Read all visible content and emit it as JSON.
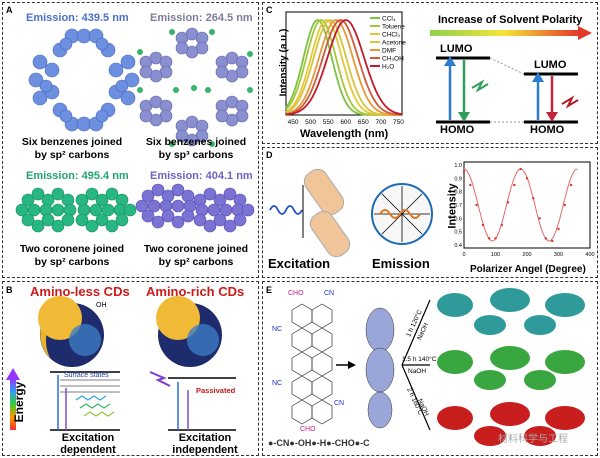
{
  "panelA": {
    "label": "A",
    "emissions": [
      "Emission: 439.5 nm",
      "Emission: 264.5 nm",
      "Emission: 495.4 nm",
      "Emission: 404.1 nm"
    ],
    "captions": [
      [
        "Six benzenes joined",
        "by sp² carbons"
      ],
      [
        "Six benzenes joined",
        "by sp³ carbons"
      ],
      [
        "Two coronene joined",
        "by sp² carbons"
      ],
      [
        "Two coronene joined",
        "by sp² carbons"
      ]
    ],
    "colors": {
      "blue": "#6d8fe0",
      "green": "#28b783",
      "purple": "#7b73d4"
    }
  },
  "panelB": {
    "label": "B",
    "titles": [
      "Amino-less CDs",
      "Amino-rich CDs"
    ],
    "energy_label": "Energy",
    "surface_states": "Surface states",
    "passivated": "Passivated",
    "captions": [
      [
        "Excitation",
        "dependent"
      ],
      [
        "Excitation",
        "independent"
      ]
    ],
    "oh_label": "OH"
  },
  "panelC": {
    "label": "C",
    "legend": [
      "CCl₄",
      "Toluene",
      "CHCl₃",
      "Acetone",
      "DMF",
      "CH₃OH",
      "H₂O"
    ],
    "ylabel": "Intensity (a.u.)",
    "xlabel": "Wavelength (nm)",
    "xticks": [
      "450",
      "500",
      "550",
      "600",
      "650",
      "700",
      "750"
    ],
    "arrow_text": "Increase of Solvent Polarity",
    "lumo": "LUMO",
    "homo": "HOMO"
  },
  "panelD": {
    "label": "D",
    "excitation": "Excitation",
    "emission": "Emission",
    "ylabel": "Intensity",
    "xlabel": "Polarizer Angel (Degree)",
    "yticks": [
      "1.0",
      "0.9",
      "0.8",
      "0.7",
      "0.6",
      "0.5",
      "0.4"
    ],
    "xticks": [
      "0",
      "100",
      "200",
      "300",
      "400"
    ]
  },
  "panelE": {
    "label": "E",
    "conditions": [
      "1 h 120°C",
      "NaOH",
      "1.5 h 140°C",
      "NaOH",
      "2 h 160°C",
      "NaOH"
    ],
    "legend": "●-CN●-OH●-H●-CHO●-C",
    "watermark": "材料科学与工程",
    "groups": [
      "CHO",
      "CN",
      "NC",
      "NC",
      "CN",
      "CHO"
    ]
  },
  "chart_data": [
    {
      "type": "line",
      "xlabel": "Wavelength (nm)",
      "ylabel": "Intensity (a.u.)",
      "xlim": [
        430,
        760
      ],
      "series": [
        {
          "name": "CCl₄",
          "color": "#7cc243",
          "peak": 520
        },
        {
          "name": "Toluene",
          "color": "#a6c63a",
          "peak": 530
        },
        {
          "name": "CHCl₃",
          "color": "#e3c938",
          "peak": 545
        },
        {
          "name": "Acetone",
          "color": "#d9c33c",
          "peak": 555
        },
        {
          "name": "DMF",
          "color": "#e59a3a",
          "peak": 572
        },
        {
          "name": "CH₃OH",
          "color": "#d25a3a",
          "peak": 585
        },
        {
          "name": "H₂O",
          "color": "#c21a2a",
          "peak": 600
        }
      ]
    },
    {
      "type": "scatter",
      "xlabel": "Polarizer Angel (Degree)",
      "ylabel": "Intensity",
      "xlim": [
        0,
        360
      ],
      "ylim": [
        0.4,
        1.0
      ],
      "x": [
        0,
        20,
        40,
        60,
        80,
        100,
        120,
        140,
        160,
        180,
        200,
        220,
        240,
        260,
        280,
        300,
        320,
        340
      ],
      "y": [
        0.95,
        0.85,
        0.7,
        0.55,
        0.45,
        0.45,
        0.55,
        0.72,
        0.85,
        0.97,
        0.9,
        0.75,
        0.6,
        0.45,
        0.43,
        0.52,
        0.7,
        0.85
      ]
    }
  ]
}
